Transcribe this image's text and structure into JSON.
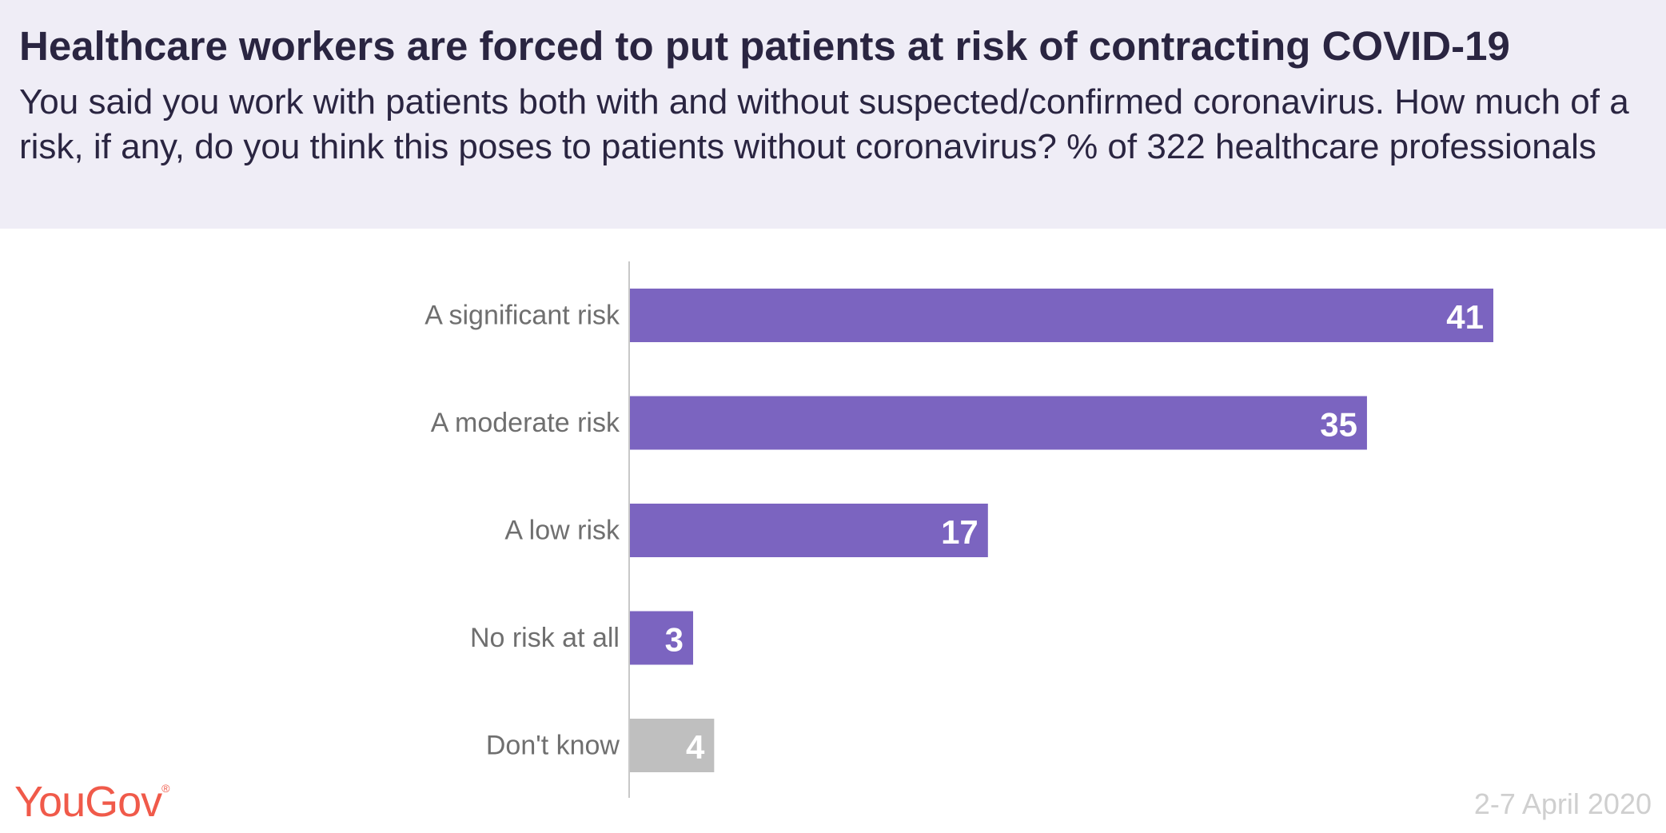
{
  "header": {
    "title": "Healthcare workers are forced to put patients at risk of contracting COVID-19",
    "subtitle": "You said you work with patients both with and without suspected/confirmed coronavirus. How much of a risk, if any, do you think this poses to patients without coronavirus? % of 322 healthcare professionals"
  },
  "chart_data": {
    "type": "bar",
    "orientation": "horizontal",
    "categories": [
      "A significant risk",
      "A moderate risk",
      "A low risk",
      "No risk at all",
      "Don't know"
    ],
    "values": [
      41,
      35,
      17,
      3,
      4
    ],
    "xlim": [
      0,
      41
    ],
    "grid": false,
    "legend": "none",
    "colors": [
      "#7b64c0",
      "#7b64c0",
      "#7b64c0",
      "#7b64c0",
      "#bfbfbf"
    ]
  },
  "footer": {
    "brand": "YouGov",
    "registered_mark": "®",
    "date": "2-7 April 2020"
  }
}
